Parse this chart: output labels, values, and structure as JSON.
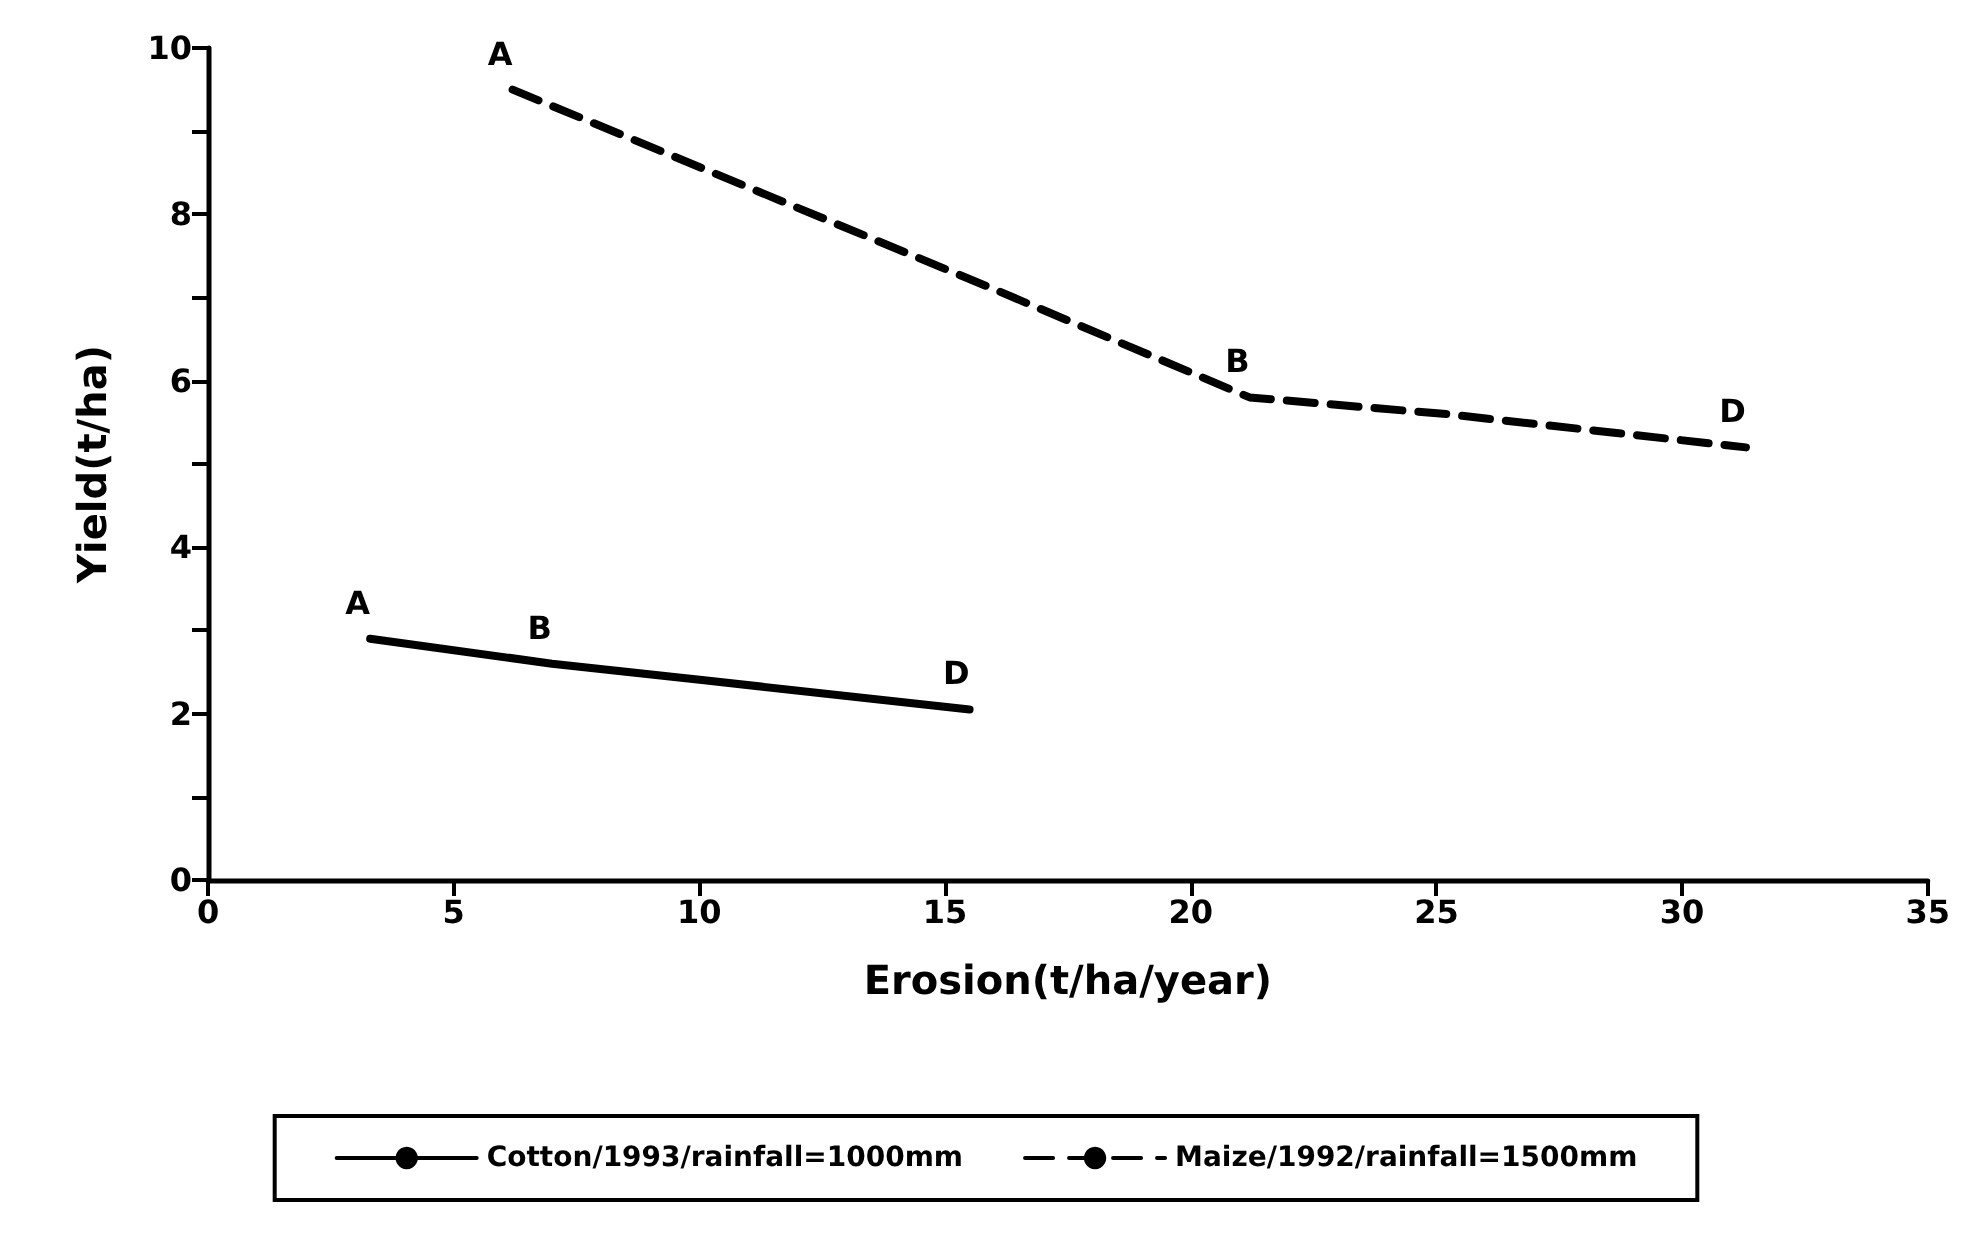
{
  "chart_data": {
    "type": "line",
    "xlabel": "Erosion(t/ha/year)",
    "ylabel": "Yield(t/ha)",
    "xlim": [
      0,
      35
    ],
    "xticks": [
      0,
      5,
      10,
      15,
      20,
      25,
      30,
      35
    ],
    "ylim": [
      0,
      10
    ],
    "yticks": [
      0,
      {
        "value": 1,
        "label": null
      },
      2,
      {
        "value": 3,
        "label": null
      },
      4,
      {
        "value": 5,
        "label": null
      },
      6,
      {
        "value": 7,
        "label": null
      },
      8,
      {
        "value": 9,
        "label": null
      },
      10
    ],
    "grid": false,
    "legend": "bottom",
    "marker": "none",
    "series": [
      {
        "name": "Cotton/1993/rainfall=1000mm",
        "color": "#000000",
        "line_style": "solid",
        "x": [
          3.3,
          7,
          10.1,
          15.5
        ],
        "values": [
          2.9,
          2.6,
          2.4,
          2.05
        ]
      },
      {
        "name": "Maize/1992/rainfall=1500mm",
        "color": "#000000",
        "line_style": "dashed",
        "x": [
          6.2,
          16,
          21.2,
          25.2,
          31.3
        ],
        "values": [
          9.5,
          7.1,
          5.8,
          5.6,
          5.2
        ]
      }
    ],
    "annotations": [
      {
        "text": "A",
        "x": 3.3,
        "y": 2.9
      },
      {
        "text": "B",
        "x": 7,
        "y": 2.6
      },
      {
        "text": "D",
        "x": 15.5,
        "y": 2.05
      },
      {
        "text": "A",
        "x": 6.2,
        "y": 9.5
      },
      {
        "text": "B",
        "x": 21.2,
        "y": 5.8
      },
      {
        "text": "D",
        "x": 31.3,
        "y": 5.2
      }
    ]
  }
}
